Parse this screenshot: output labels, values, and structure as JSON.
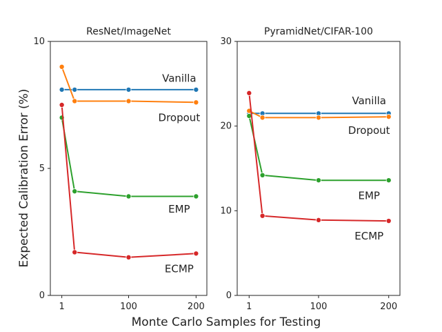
{
  "figure": {
    "ylabel": "Expected Calibration Error (%)",
    "xlabel": "Monte Carlo Samples for Testing"
  },
  "chart_data": [
    {
      "type": "line",
      "title": "ResNet/ImageNet",
      "x": [
        1,
        20,
        100,
        200
      ],
      "xticks": [
        1,
        100,
        200
      ],
      "xlim": [
        -16,
        216
      ],
      "yticks": [
        0,
        5,
        10
      ],
      "ylim": [
        0,
        10
      ],
      "grid": false,
      "series": [
        {
          "name": "Vanilla",
          "color": "#1f77b4",
          "values": [
            8.1,
            8.1,
            8.1,
            8.1
          ]
        },
        {
          "name": "Dropout",
          "color": "#ff7f0e",
          "values": [
            9.0,
            7.65,
            7.65,
            7.6
          ]
        },
        {
          "name": "EMP",
          "color": "#2ca02c",
          "values": [
            7.0,
            4.1,
            3.9,
            3.9
          ]
        },
        {
          "name": "ECMP",
          "color": "#d62728",
          "values": [
            7.5,
            1.7,
            1.5,
            1.65
          ]
        }
      ],
      "labels": [
        {
          "text": "Vanilla",
          "x": 175,
          "y": 8.55
        },
        {
          "text": "Dropout",
          "x": 175,
          "y": 7.0
        },
        {
          "text": "EMP",
          "x": 175,
          "y": 3.4
        },
        {
          "text": "ECMP",
          "x": 175,
          "y": 1.05
        }
      ]
    },
    {
      "type": "line",
      "title": "PyramidNet/CIFAR-100",
      "x": [
        1,
        20,
        100,
        200
      ],
      "xticks": [
        1,
        100,
        200
      ],
      "xlim": [
        -16,
        216
      ],
      "yticks": [
        0,
        10,
        20,
        30
      ],
      "ylim": [
        0,
        30
      ],
      "grid": false,
      "series": [
        {
          "name": "Vanilla",
          "color": "#1f77b4",
          "values": [
            21.5,
            21.5,
            21.5,
            21.5
          ]
        },
        {
          "name": "Dropout",
          "color": "#ff7f0e",
          "values": [
            21.8,
            21.0,
            21.0,
            21.1
          ]
        },
        {
          "name": "EMP",
          "color": "#2ca02c",
          "values": [
            21.2,
            14.2,
            13.6,
            13.6
          ]
        },
        {
          "name": "ECMP",
          "color": "#d62728",
          "values": [
            23.9,
            9.4,
            8.9,
            8.8
          ]
        }
      ],
      "labels": [
        {
          "text": "Vanilla",
          "x": 172,
          "y": 23.0
        },
        {
          "text": "Dropout",
          "x": 172,
          "y": 19.5
        },
        {
          "text": "EMP",
          "x": 172,
          "y": 11.8
        },
        {
          "text": "ECMP",
          "x": 172,
          "y": 7.0
        }
      ]
    }
  ]
}
